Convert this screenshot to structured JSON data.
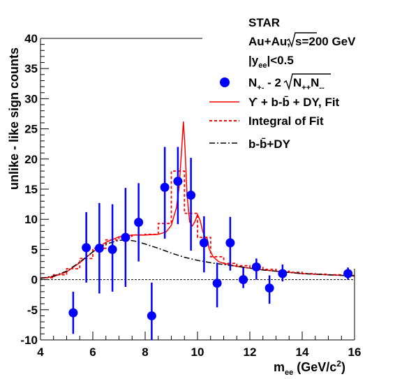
{
  "chart_data": {
    "type": "scatter",
    "title": "",
    "xlabel": "m_ee (GeV/c2)",
    "ylabel": "unlike - like sign counts",
    "xlim": [
      4,
      16
    ],
    "ylim": [
      -10,
      40
    ],
    "x_ticks": [
      "4",
      "6",
      "8",
      "10",
      "12",
      "14",
      "16"
    ],
    "y_ticks": [
      "-10",
      "-5",
      "0",
      "5",
      "10",
      "15",
      "20",
      "25",
      "30",
      "35",
      "40"
    ],
    "grid": false,
    "legend_position": "top-right",
    "annotations": {
      "experiment": "STAR",
      "system": "Au+Au,",
      "energy": "s=200 GeV",
      "rapidity_cut": "|y",
      "rapidity_sub": "ee",
      "rapidity_rest": "|<0.5"
    },
    "legend": {
      "points": "N+- - 2√N++N--",
      "fit": "ϒ + b-b̄ + DY, Fit",
      "integral": "Integral of Fit",
      "bb_dy": "b-b̄+DY"
    },
    "series": [
      {
        "name": "N+- - 2√N++N--",
        "kind": "points_with_errors",
        "color": "#0000ff",
        "points": [
          {
            "x": 5.25,
            "y": -5.5,
            "lo": -9.0,
            "hi": -2.0
          },
          {
            "x": 5.75,
            "y": 5.3,
            "lo": -0.5,
            "hi": 11.2
          },
          {
            "x": 6.25,
            "y": 5.2,
            "lo": -2.3,
            "hi": 12.7
          },
          {
            "x": 6.75,
            "y": 5.0,
            "lo": -2.0,
            "hi": 12.5
          },
          {
            "x": 7.25,
            "y": 7.0,
            "lo": -1.2,
            "hi": 15.2
          },
          {
            "x": 7.75,
            "y": 9.5,
            "lo": 3.0,
            "hi": 16.0
          },
          {
            "x": 8.25,
            "y": -6.0,
            "lo": -10.0,
            "hi": -0.5
          },
          {
            "x": 8.75,
            "y": 15.3,
            "lo": 6.8,
            "hi": 22.0
          },
          {
            "x": 9.25,
            "y": 16.3,
            "lo": 9.2,
            "hi": 22.0
          },
          {
            "x": 9.75,
            "y": 14.0,
            "lo": 4.8,
            "hi": 20.2
          },
          {
            "x": 10.25,
            "y": 6.1,
            "lo": 1.2,
            "hi": 10.5
          },
          {
            "x": 10.75,
            "y": -0.6,
            "lo": -4.6,
            "hi": 2.8
          },
          {
            "x": 11.25,
            "y": 6.1,
            "lo": 1.5,
            "hi": 10.4
          },
          {
            "x": 11.75,
            "y": 0.0,
            "lo": -1.4,
            "hi": 2.0
          },
          {
            "x": 12.25,
            "y": 2.1,
            "lo": 0.0,
            "hi": 3.5
          },
          {
            "x": 12.75,
            "y": -1.4,
            "lo": -4.0,
            "hi": 0.7
          },
          {
            "x": 13.25,
            "y": 1.0,
            "lo": -0.3,
            "hi": 2.5
          },
          {
            "x": 15.75,
            "y": 1.0,
            "lo": 0.0,
            "hi": 2.0
          }
        ]
      },
      {
        "name": "ϒ + b-b̄ + DY, Fit",
        "kind": "line",
        "color": "#ff0000",
        "x": [
          4.0,
          4.5,
          5.0,
          5.5,
          6.0,
          6.5,
          7.0,
          7.5,
          8.0,
          8.5,
          8.8,
          9.0,
          9.2,
          9.3,
          9.4,
          9.46,
          9.52,
          9.6,
          9.7,
          9.8,
          9.9,
          10.0,
          10.1,
          10.2,
          10.3,
          10.36,
          10.45,
          10.6,
          10.8,
          11.0,
          11.5,
          12.0,
          12.5,
          13.0,
          14.0,
          15.0,
          16.0
        ],
        "y": [
          0.2,
          0.5,
          1.3,
          2.8,
          4.6,
          6.2,
          7.1,
          7.4,
          7.4,
          7.5,
          7.9,
          9.0,
          12.0,
          15.5,
          22.0,
          26.2,
          22.0,
          14.0,
          9.6,
          8.9,
          9.6,
          10.8,
          9.8,
          8.0,
          6.9,
          7.0,
          5.0,
          3.8,
          3.0,
          2.7,
          2.2,
          1.9,
          1.6,
          1.4,
          1.0,
          0.8,
          0.6
        ]
      },
      {
        "name": "Integral of Fit",
        "kind": "step",
        "color": "#ff0000",
        "edges": [
          4.0,
          4.5,
          5.0,
          5.5,
          6.0,
          6.5,
          7.0,
          7.5,
          8.0,
          8.5,
          9.0,
          9.5,
          10.0,
          10.5,
          11.0,
          11.5,
          12.0,
          12.5,
          13.0,
          13.5,
          14.0,
          14.5,
          15.0,
          15.5,
          16.0
        ],
        "values": [
          0.3,
          0.8,
          1.8,
          3.5,
          5.2,
          6.6,
          7.2,
          7.4,
          7.5,
          9.3,
          18.0,
          11.0,
          7.0,
          3.8,
          2.7,
          2.3,
          2.0,
          1.7,
          1.4,
          1.2,
          1.0,
          0.9,
          0.8,
          0.7
        ]
      },
      {
        "name": "b-b̄+DY",
        "kind": "line",
        "color": "#000000",
        "x": [
          4.0,
          4.5,
          5.0,
          5.5,
          6.0,
          6.5,
          7.0,
          7.3,
          7.6,
          8.0,
          8.5,
          9.0,
          9.5,
          10.0,
          10.5,
          11.0,
          11.5,
          12.0,
          12.5,
          13.0,
          14.0,
          15.0,
          16.0
        ],
        "y": [
          0.2,
          0.6,
          1.4,
          2.9,
          4.6,
          5.9,
          6.5,
          6.6,
          6.4,
          5.9,
          5.2,
          4.4,
          3.7,
          3.2,
          2.8,
          2.5,
          2.2,
          1.9,
          1.6,
          1.4,
          1.0,
          0.8,
          0.6
        ]
      }
    ]
  }
}
